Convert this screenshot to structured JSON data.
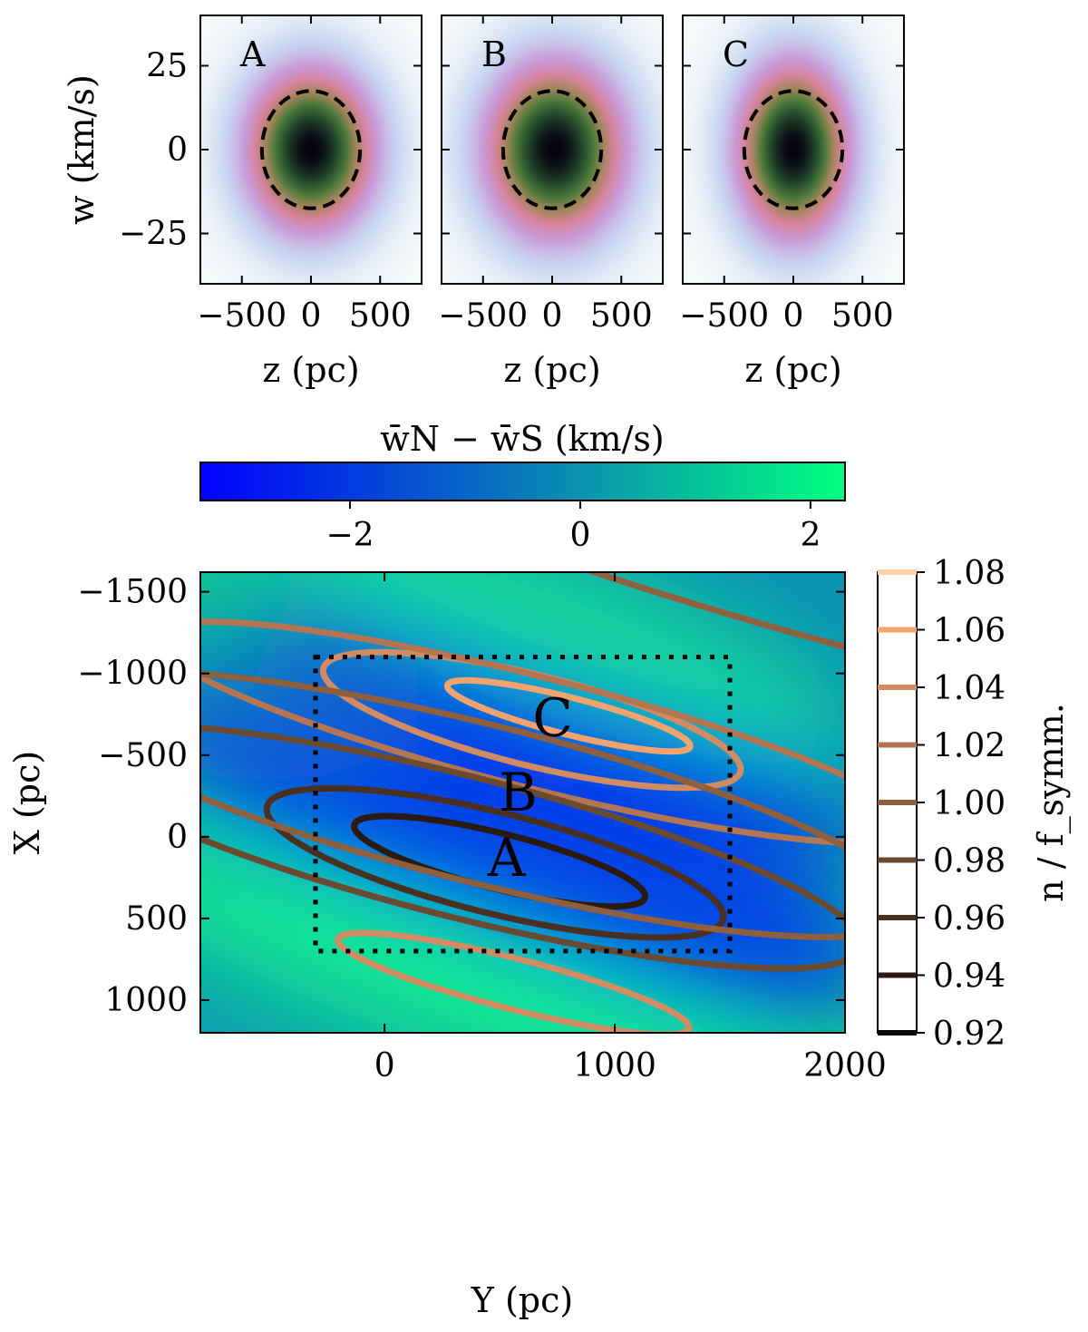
{
  "chart_data": [
    {
      "type": "heatmap",
      "panel": "A",
      "xlabel": "z (pc)",
      "ylabel": "w (km/s)",
      "xlim": [
        -800,
        800
      ],
      "ylim": [
        -40,
        40
      ],
      "x_ticks": [
        -500,
        0,
        500
      ],
      "y_ticks": [
        -25,
        0,
        25
      ],
      "x_tick_labels": [
        "−500",
        "0",
        "500"
      ],
      "y_tick_labels": [
        "−25",
        "0",
        "25"
      ],
      "distribution": {
        "center_z": 0,
        "center_w": 0,
        "sigma_z": 250,
        "sigma_w": 13,
        "tilt_deg": 0
      },
      "dashed_ellipse": {
        "center": [
          0,
          0
        ],
        "half_width_z": 355,
        "half_height_w": 17.5,
        "tilt_deg": 0
      }
    },
    {
      "type": "heatmap",
      "panel": "B",
      "xlabel": "z (pc)",
      "xlim": [
        -800,
        800
      ],
      "ylim": [
        -40,
        40
      ],
      "x_ticks": [
        -500,
        0,
        500
      ],
      "x_tick_labels": [
        "−500",
        "0",
        "500"
      ],
      "distribution": {
        "center_z": 20,
        "center_w": 0,
        "sigma_z": 270,
        "sigma_w": 14,
        "tilt_deg": 14
      },
      "dashed_ellipse": {
        "center": [
          0,
          0
        ],
        "half_width_z": 355,
        "half_height_w": 17.5,
        "tilt_deg": 0
      }
    },
    {
      "type": "heatmap",
      "panel": "C",
      "xlabel": "z (pc)",
      "xlim": [
        -800,
        800
      ],
      "ylim": [
        -40,
        40
      ],
      "x_ticks": [
        -500,
        0,
        500
      ],
      "x_tick_labels": [
        "−500",
        "0",
        "500"
      ],
      "distribution": {
        "center_z": 0,
        "center_w": 0,
        "sigma_z": 220,
        "sigma_w": 14,
        "tilt_deg": 0
      },
      "dashed_ellipse": {
        "center": [
          0,
          0
        ],
        "half_width_z": 355,
        "half_height_w": 17.5,
        "tilt_deg": 0
      }
    },
    {
      "type": "heatmap",
      "panel": "main",
      "xlabel": "Y (pc)",
      "ylabel": "X (pc)",
      "xlim": [
        -800,
        2000
      ],
      "ylim": [
        -1620,
        1200
      ],
      "y_inverted": true,
      "x_ticks": [
        0,
        1000,
        2000
      ],
      "y_ticks": [
        -1500,
        -1000,
        -500,
        0,
        500,
        1000
      ],
      "x_tick_labels": [
        "0",
        "1000",
        "2000"
      ],
      "y_tick_labels": [
        "−1500",
        "−1000",
        "−500",
        "0",
        "500",
        "1000"
      ],
      "color_field": {
        "label": "w̄N − w̄S (km/s)",
        "range": [
          -3.3,
          2.3
        ],
        "ticks": [
          -2,
          0,
          2
        ],
        "tick_labels": [
          "−2",
          "0",
          "2"
        ],
        "colors": [
          "#0000ff",
          "#00ff80"
        ]
      },
      "contours": {
        "label": "n / f_symm.",
        "levels": [
          0.92,
          0.94,
          0.96,
          0.98,
          1.0,
          1.02,
          1.04,
          1.06,
          1.08
        ],
        "level_labels": [
          "0.92",
          "0.94",
          "0.96",
          "0.98",
          "1.00",
          "1.02",
          "1.04",
          "1.06",
          "1.08"
        ],
        "level_colors": [
          "#0a0604",
          "#2a1a10",
          "#4a3020",
          "#6b4a32",
          "#8e6040",
          "#b37552",
          "#d28c63",
          "#f5a36e",
          "#ffd2a8"
        ],
        "lines": [
          {
            "level": 0.94,
            "center": [
              500,
              150
            ],
            "a": 670,
            "b": 165,
            "angle_deg": 20
          },
          {
            "level": 0.96,
            "center": [
              480,
              160
            ],
            "a": 1050,
            "b": 300,
            "angle_deg": 20
          },
          {
            "level": 1.06,
            "center": [
              800,
              -740
            ],
            "a": 560,
            "b": 110,
            "angle_deg": 20
          },
          {
            "level": 1.04,
            "center": [
              640,
              -715
            ],
            "a": 960,
            "b": 270,
            "angle_deg": 20
          },
          {
            "level": 1.02,
            "center": [
              650,
              -640
            ],
            "a": 1760,
            "b": 330,
            "angle_deg": 20
          },
          {
            "level": 0.98,
            "center": [
              330,
              60
            ],
            "a": 1850,
            "b": 420,
            "angle_deg": 20
          },
          {
            "level": 1.0,
            "center": [
              430,
              -200
            ],
            "a": 2000,
            "b": 470,
            "angle_deg": 20
          },
          {
            "level": 1.04,
            "center": [
              560,
              900
            ],
            "a": 810,
            "b": 150,
            "angle_deg": 20
          },
          {
            "level": 1.0,
            "center": [
              2340,
              -1420
            ],
            "a": 2560,
            "b": 360,
            "angle_deg": 20
          }
        ]
      },
      "box": {
        "y_range": [
          -300,
          1500
        ],
        "x_range": [
          -1100,
          700
        ]
      },
      "annotations": [
        {
          "text": "A",
          "at": [
            530,
            130
          ]
        },
        {
          "text": "B",
          "at": [
            580,
            -270
          ]
        },
        {
          "text": "C",
          "at": [
            730,
            -730
          ]
        }
      ]
    }
  ]
}
